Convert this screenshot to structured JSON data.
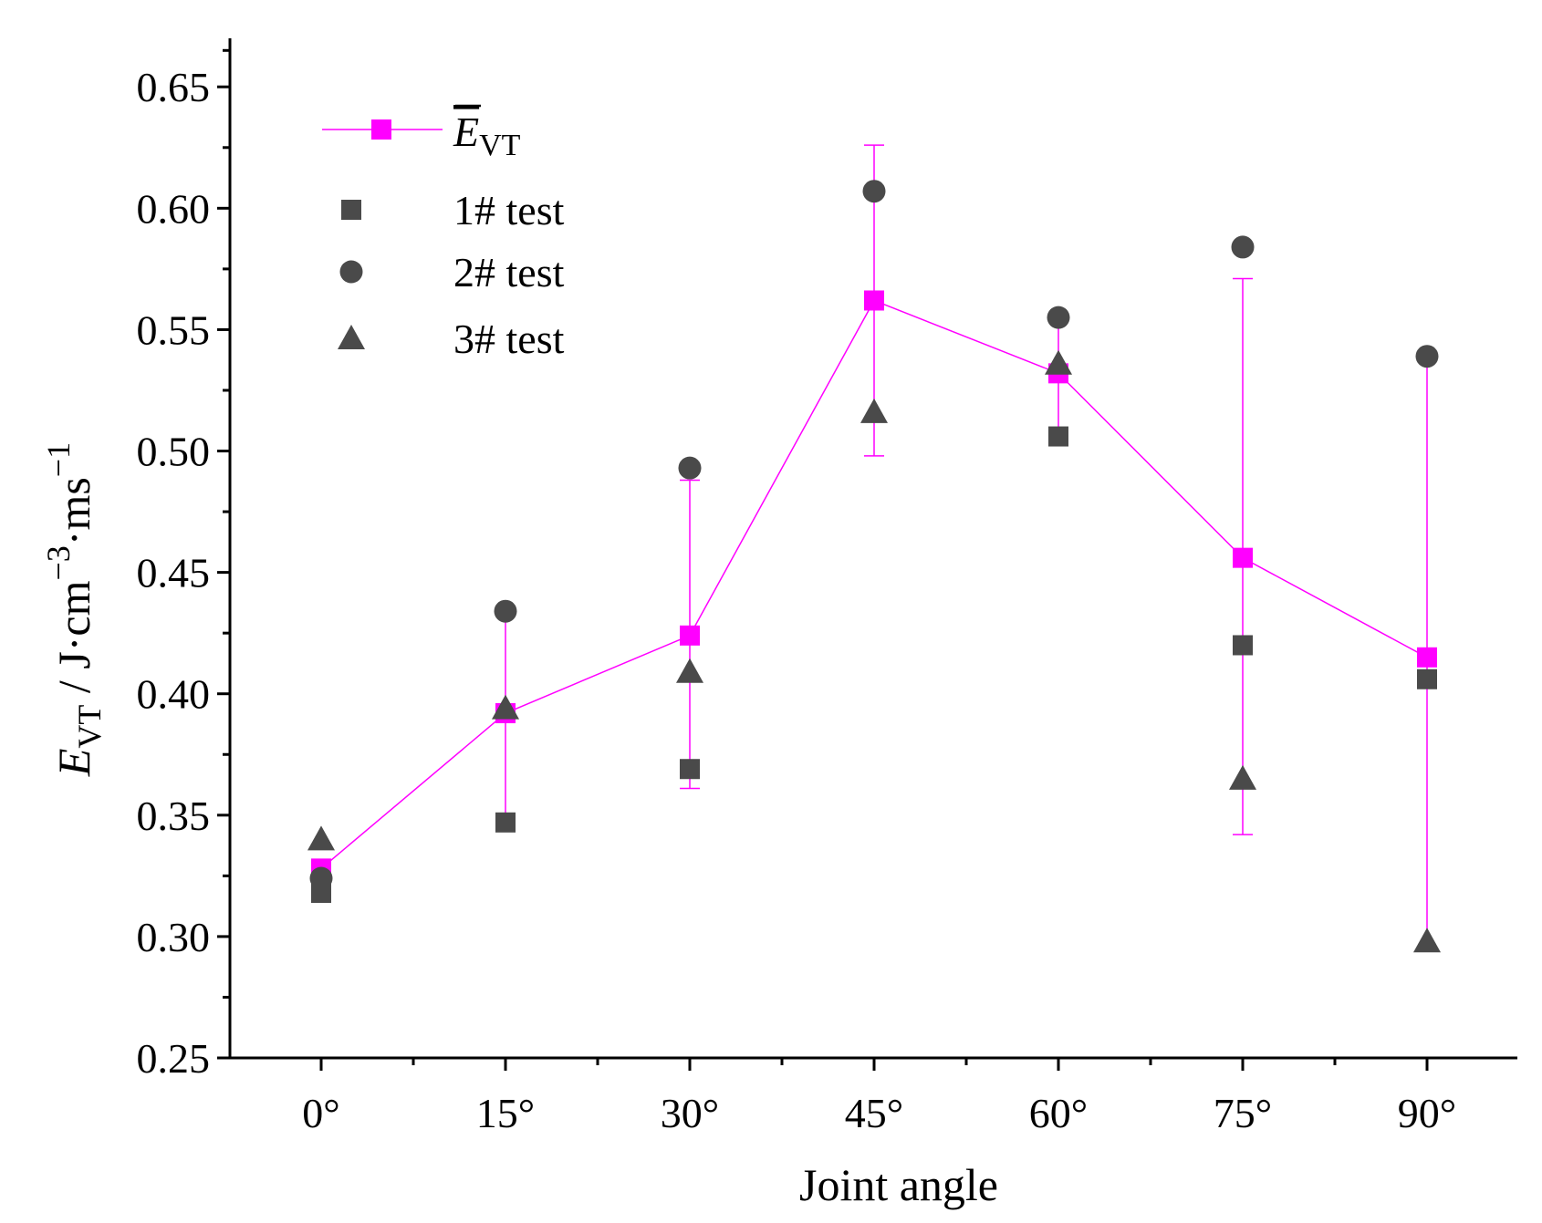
{
  "chart_data": {
    "type": "scatter",
    "categories": [
      "0°",
      "15°",
      "30°",
      "45°",
      "60°",
      "75°",
      "90°"
    ],
    "xlabel": "Joint angle",
    "ylabel": {
      "symbol": "E",
      "subscript": "VT",
      "unit_prefix": " / J·cm",
      "exp1": "−3",
      "unit_mid": "·ms",
      "exp2": "−1"
    },
    "ylim": [
      0.25,
      0.67
    ],
    "yticks": [
      "0.25",
      "0.30",
      "0.35",
      "0.40",
      "0.45",
      "0.50",
      "0.55",
      "0.60",
      "0.65"
    ],
    "series": [
      {
        "name": "mean",
        "legend_symbol": "E",
        "legend_subscript": "VT",
        "color": "#ff00ff",
        "marker": "square",
        "line": true,
        "values": [
          0.328,
          0.392,
          0.424,
          0.562,
          0.532,
          0.456,
          0.415
        ],
        "err_low": [
          0.318,
          0.347,
          0.361,
          0.498,
          0.506,
          0.342,
          0.295
        ],
        "err_high": [
          0.33,
          0.434,
          0.488,
          0.626,
          0.555,
          0.571,
          0.539
        ]
      },
      {
        "name": "1# test",
        "color": "#4a4a4a",
        "marker": "square",
        "line": false,
        "values": [
          0.318,
          0.347,
          0.369,
          null,
          0.506,
          0.42,
          0.406
        ]
      },
      {
        "name": "2# test",
        "color": "#4a4a4a",
        "marker": "circle",
        "line": false,
        "values": [
          0.324,
          0.434,
          0.493,
          0.607,
          0.555,
          0.584,
          0.539
        ]
      },
      {
        "name": "3# test",
        "color": "#4a4a4a",
        "marker": "triangle",
        "line": false,
        "values": [
          0.34,
          0.394,
          0.409,
          0.516,
          0.536,
          0.365,
          0.298
        ]
      }
    ],
    "legend_position": "top-left"
  }
}
